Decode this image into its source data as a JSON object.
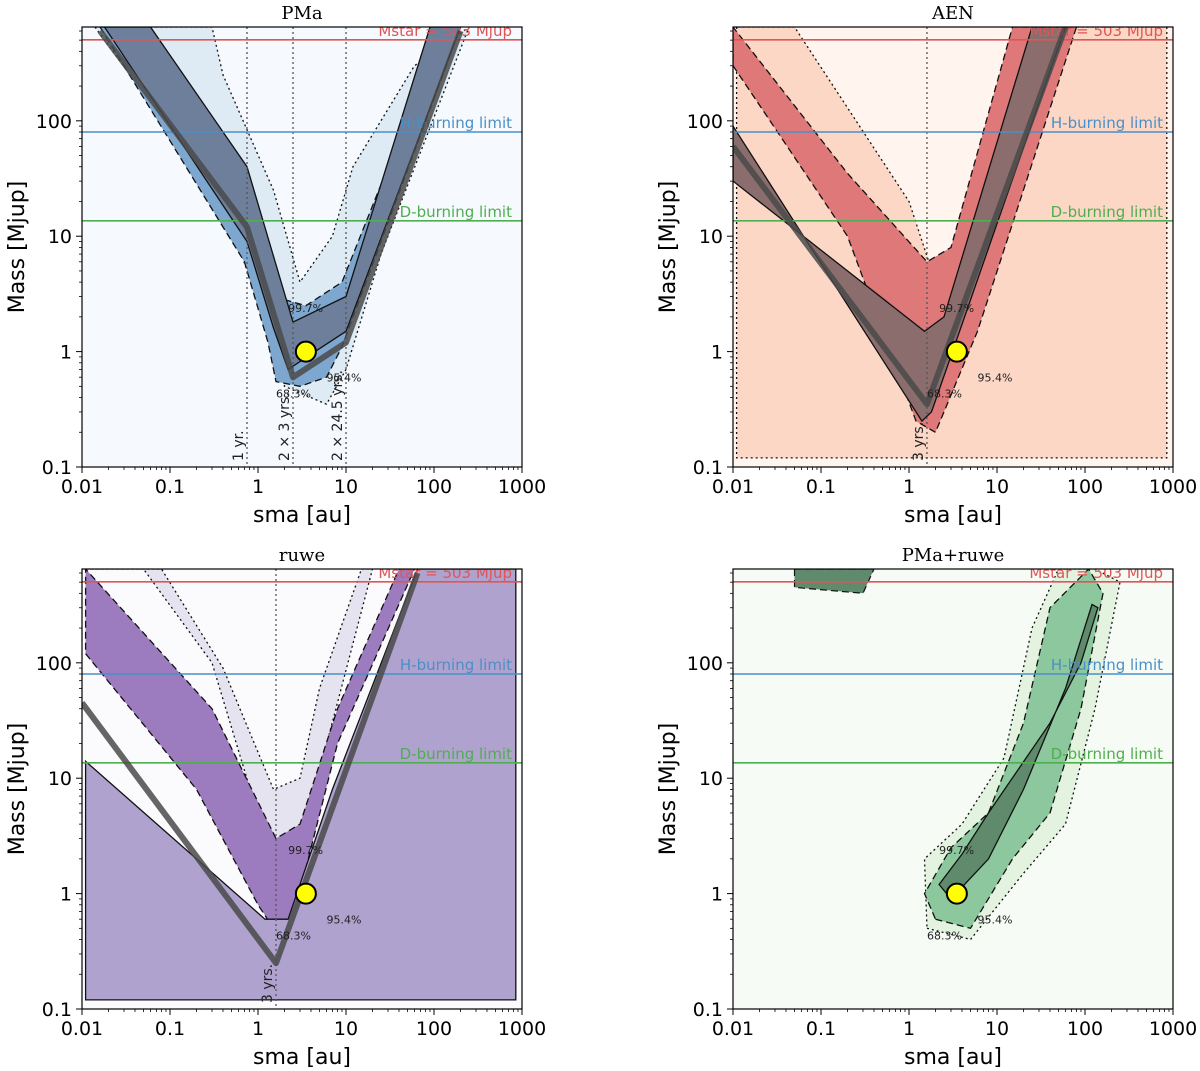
{
  "figure": {
    "x_tick_labels": [
      "0.01",
      "0.1",
      "1",
      "10",
      "100",
      "1000"
    ],
    "y_tick_labels": [
      "0.1",
      "1",
      "10",
      "100"
    ],
    "xlabel": "sma [au]",
    "ylabel": "Mass [Mjup]",
    "reference_lines": [
      {
        "label": "Mstar = 503 Mjup",
        "mass": 503,
        "color": "#e05555"
      },
      {
        "label": "H-burning limit",
        "mass": 80,
        "color": "#4a8fc7"
      },
      {
        "label": "D-burning limit",
        "mass": 13.6,
        "color": "#4fae4f"
      }
    ],
    "companion_marker": {
      "sma": 3.5,
      "mass": 1,
      "color": "#ffff00"
    }
  },
  "chart_data": [
    {
      "type": "heatmap",
      "title": "PMa",
      "xlabel": "sma [au]",
      "ylabel": "Mass [Mjup]",
      "xlim": [
        0.01,
        1000
      ],
      "ylim": [
        0.1,
        650
      ],
      "x_scale": "log",
      "y_scale": "log",
      "palette": {
        "l68": "#6e7f9c",
        "l95": "#7ea7cf",
        "l99": "#deebf5",
        "bg": "#f6f9fd"
      },
      "contour_labels": [
        "68.3%",
        "95.4%",
        "99.7%"
      ],
      "period_lines": [
        {
          "sma": 0.75,
          "label": "1 yr."
        },
        {
          "sma": 2.5,
          "label": "2 × 3 yrs."
        },
        {
          "sma": 10,
          "label": "2 × 24.5 yrs."
        }
      ],
      "sensitivity_curve": {
        "sma": [
          0.016,
          0.75,
          2.5,
          10,
          200
        ],
        "mass": [
          600,
          12,
          0.6,
          1.2,
          600
        ]
      },
      "contours": {
        "l68": [
          [
            0.018,
            650
          ],
          [
            0.75,
            9
          ],
          [
            1.5,
            1.6
          ],
          [
            2.2,
            0.7
          ],
          [
            4,
            0.95
          ],
          [
            10,
            1.5
          ],
          [
            200,
            650
          ],
          [
            90,
            650
          ],
          [
            10,
            3
          ],
          [
            2.5,
            1.8
          ],
          [
            0.75,
            40
          ],
          [
            0.06,
            650
          ]
        ],
        "l95": [
          [
            0.016,
            650
          ],
          [
            0.7,
            6
          ],
          [
            1.3,
            1.2
          ],
          [
            1.6,
            0.55
          ],
          [
            3,
            0.5
          ],
          [
            6,
            0.6
          ],
          [
            9,
            1.1
          ],
          [
            200,
            650
          ],
          [
            130,
            650
          ],
          [
            9,
            4
          ],
          [
            3.5,
            2.5
          ],
          [
            1.5,
            3
          ],
          [
            1,
            9
          ],
          [
            0.3,
            100
          ],
          [
            0.06,
            650
          ]
        ],
        "l99": [
          [
            0.014,
            650
          ],
          [
            0.4,
            20
          ],
          [
            1.2,
            1.8
          ],
          [
            2,
            0.5
          ],
          [
            6,
            0.35
          ],
          [
            10,
            0.7
          ],
          [
            25,
            7
          ],
          [
            250,
            650
          ],
          [
            60,
            300
          ],
          [
            12,
            40
          ],
          [
            7,
            10
          ],
          [
            3,
            4
          ],
          [
            1.5,
            25
          ],
          [
            0.4,
            250
          ],
          [
            0.3,
            650
          ]
        ]
      }
    },
    {
      "type": "heatmap",
      "title": "AEN",
      "xlabel": "sma [au]",
      "ylabel": "Mass [Mjup]",
      "xlim": [
        0.01,
        1000
      ],
      "ylim": [
        0.1,
        650
      ],
      "x_scale": "log",
      "y_scale": "log",
      "palette": {
        "l68": "#8c6d6d",
        "l95": "#df7878",
        "l99": "#fcd7c6",
        "bg": "#fff4ee"
      },
      "contour_labels": [
        "68.3%",
        "95.4%",
        "99.7%"
      ],
      "period_lines": [
        {
          "sma": 1.6,
          "label": "3 yrs."
        }
      ],
      "sensitivity_curve": {
        "sma": [
          0.01,
          1.6,
          60
        ],
        "mass": [
          60,
          0.35,
          650
        ]
      },
      "contours": {
        "l68": [
          [
            0.01,
            90
          ],
          [
            1.4,
            0.25
          ],
          [
            1.8,
            0.3
          ],
          [
            60,
            650
          ],
          [
            25,
            650
          ],
          [
            2.5,
            2
          ],
          [
            1.5,
            1.5
          ],
          [
            0.01,
            30
          ]
        ],
        "l95": [
          [
            0.01,
            300
          ],
          [
            0.2,
            10
          ],
          [
            1.2,
            0.25
          ],
          [
            2,
            0.2
          ],
          [
            6,
            1.5
          ],
          [
            80,
            650
          ],
          [
            15,
            650
          ],
          [
            3,
            8
          ],
          [
            1.6,
            6
          ],
          [
            0.2,
            35
          ],
          [
            0.01,
            650
          ]
        ],
        "l99": [
          [
            0.011,
            650
          ],
          [
            0.011,
            0.12
          ],
          [
            850,
            0.12
          ],
          [
            850,
            650
          ],
          [
            70,
            650
          ],
          [
            6,
            20
          ],
          [
            2,
            4
          ],
          [
            1,
            20
          ],
          [
            0.05,
            650
          ]
        ]
      }
    },
    {
      "type": "heatmap",
      "title": "ruwe",
      "xlabel": "sma [au]",
      "ylabel": "Mass [Mjup]",
      "xlim": [
        0.01,
        1000
      ],
      "ylim": [
        0.1,
        650
      ],
      "x_scale": "log",
      "y_scale": "log",
      "palette": {
        "l68": "#b0a2cf",
        "l95": "#9d7bbf",
        "l99": "#e6e3f1",
        "bg": "#fbfafd"
      },
      "contour_labels": [
        "68.3%",
        "95.4%",
        "99.7%"
      ],
      "period_lines": [
        {
          "sma": 1.6,
          "label": "3 yrs."
        }
      ],
      "sensitivity_curve": {
        "sma": [
          0.01,
          1.6,
          65
        ],
        "mass": [
          45,
          0.25,
          600
        ]
      },
      "contours": {
        "l68": [
          [
            0.011,
            0.12
          ],
          [
            850,
            0.12
          ],
          [
            850,
            650
          ],
          [
            65,
            650
          ],
          [
            7,
            8
          ],
          [
            2.2,
            0.6
          ],
          [
            1.2,
            0.6
          ],
          [
            0.011,
            14
          ]
        ],
        "l95": [
          [
            0.011,
            120
          ],
          [
            0.2,
            8
          ],
          [
            1,
            0.8
          ],
          [
            1.5,
            0.5
          ],
          [
            2.5,
            0.6
          ],
          [
            8,
            20
          ],
          [
            60,
            650
          ],
          [
            40,
            650
          ],
          [
            8,
            40
          ],
          [
            3,
            4
          ],
          [
            1.6,
            3
          ],
          [
            0.3,
            40
          ],
          [
            0.011,
            650
          ]
        ],
        "l99": [
          [
            0.011,
            650
          ],
          [
            0.05,
            650
          ],
          [
            0.3,
            100
          ],
          [
            1.2,
            3
          ],
          [
            2.4,
            1.2
          ],
          [
            4,
            6
          ],
          [
            20,
            650
          ],
          [
            15,
            650
          ],
          [
            5,
            60
          ],
          [
            3,
            10
          ],
          [
            1.5,
            8
          ],
          [
            0.4,
            90
          ],
          [
            0.08,
            650
          ]
        ]
      }
    },
    {
      "type": "heatmap",
      "title": "PMa+ruwe",
      "xlabel": "sma [au]",
      "ylabel": "Mass [Mjup]",
      "xlim": [
        0.01,
        1000
      ],
      "ylim": [
        0.1,
        650
      ],
      "x_scale": "log",
      "y_scale": "log",
      "palette": {
        "l68": "#5f8a6c",
        "l95": "#8cc79d",
        "l99": "#e3f3e0",
        "bg": "#f7fbf6"
      },
      "contour_labels": [
        "68.3%",
        "95.4%",
        "99.7%"
      ],
      "period_lines": [],
      "sensitivity_curve": {
        "sma": [],
        "mass": []
      },
      "contours": {
        "l68": [
          [
            2.2,
            1.2
          ],
          [
            4,
            2.2
          ],
          [
            8,
            5
          ],
          [
            40,
            30
          ],
          [
            90,
            100
          ],
          [
            140,
            300
          ],
          [
            120,
            320
          ],
          [
            60,
            60
          ],
          [
            20,
            8
          ],
          [
            8,
            2
          ],
          [
            3,
            0.9
          ]
        ],
        "l95": [
          [
            2,
            0.6
          ],
          [
            5,
            0.5
          ],
          [
            15,
            2
          ],
          [
            40,
            5
          ],
          [
            90,
            40
          ],
          [
            160,
            400
          ],
          [
            110,
            650
          ],
          [
            40,
            300
          ],
          [
            20,
            30
          ],
          [
            8,
            5
          ],
          [
            3,
            2.5
          ],
          [
            1.5,
            1
          ]
        ],
        "l99": [
          [
            1.6,
            0.5
          ],
          [
            5,
            0.4
          ],
          [
            20,
            1.5
          ],
          [
            60,
            4
          ],
          [
            130,
            40
          ],
          [
            250,
            500
          ],
          [
            130,
            650
          ],
          [
            50,
            650
          ],
          [
            25,
            200
          ],
          [
            12,
            15
          ],
          [
            4,
            4
          ],
          [
            1.5,
            2
          ]
        ],
        "blob_top": [
          [
            0.05,
            650
          ],
          [
            0.05,
            450
          ],
          [
            0.3,
            400
          ],
          [
            0.4,
            650
          ]
        ]
      }
    }
  ]
}
